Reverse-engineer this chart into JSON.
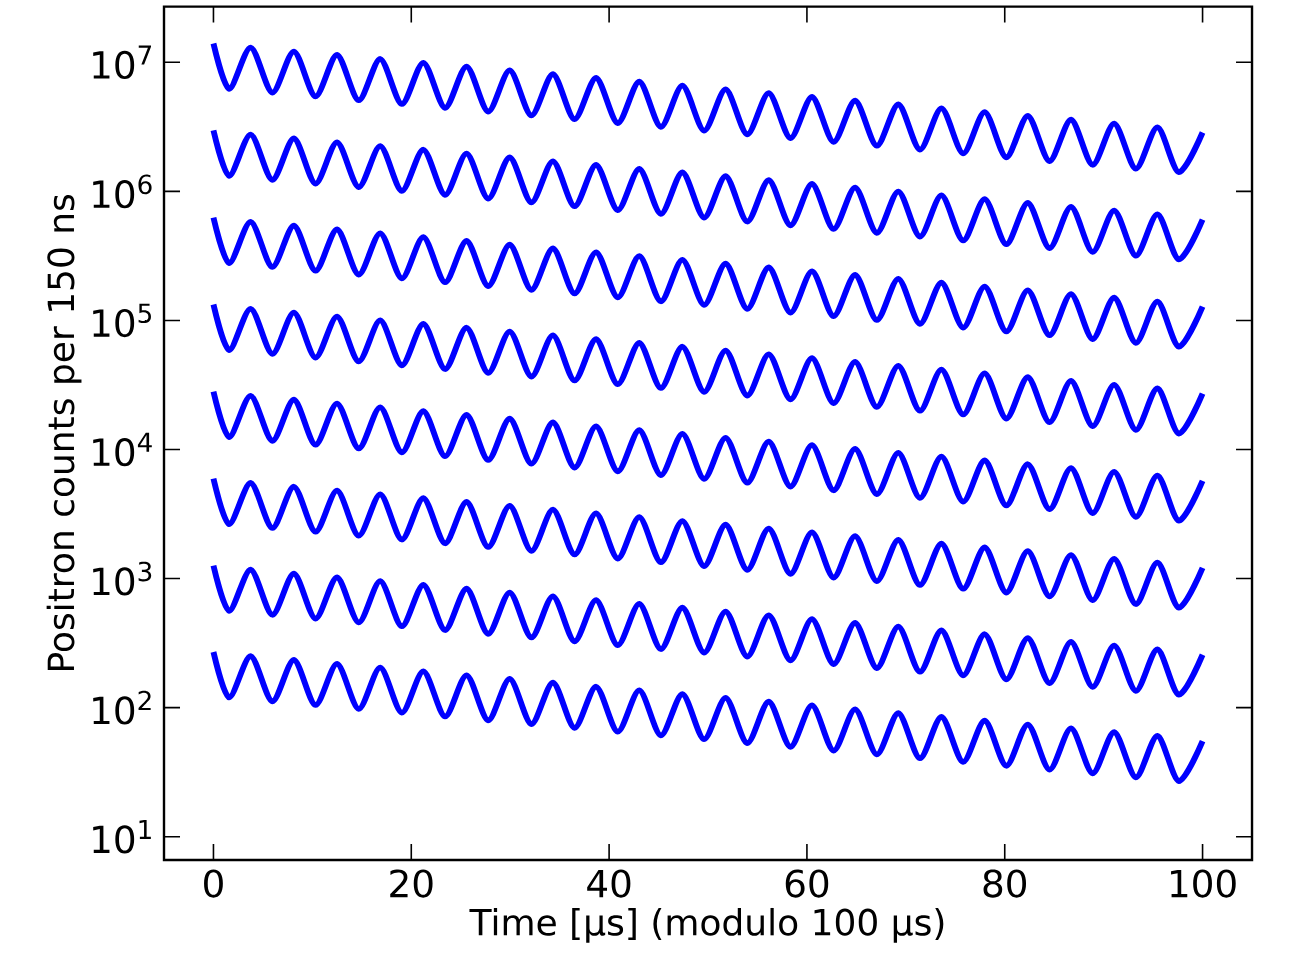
{
  "chart_data": {
    "type": "line",
    "xlabel": "Time [μs] (modulo 100 μs)",
    "ylabel": "Positron counts per 150 ns",
    "log": "y",
    "grid": false,
    "marker": "none",
    "line_style": "solid",
    "xlim": [
      -5,
      105
    ],
    "ylim": [
      6.6,
      27000000.0
    ],
    "xticks": [
      0,
      20,
      40,
      60,
      80,
      100
    ],
    "yticks": [
      {
        "value": 10,
        "label": "10$^{1}$"
      },
      {
        "value": 100,
        "label": "10$^{2}$"
      },
      {
        "value": 1000,
        "label": "10$^{3}$"
      },
      {
        "value": 10000,
        "label": "10$^{4}$"
      },
      {
        "value": 100000,
        "label": "10$^{5}$"
      },
      {
        "value": 1000000,
        "label": "10$^{6}$"
      },
      {
        "value": 10000000,
        "label": "10$^{7}$"
      }
    ],
    "x": [
      0,
      1.58,
      3.77,
      5.95,
      8.14,
      10.31,
      12.5,
      14.68,
      16.87,
      19.04,
      21.23,
      23.41,
      25.6,
      27.77,
      29.96,
      32.14,
      34.33,
      36.5,
      38.69,
      40.87,
      43.06,
      45.23,
      47.42,
      49.6,
      51.79,
      53.96,
      56.15,
      58.33,
      60.52,
      62.69,
      64.88,
      67.06,
      69.25,
      71.42,
      73.61,
      75.79,
      77.98,
      80.15,
      82.34,
      84.52,
      86.71,
      88.88,
      91.07,
      93.25,
      95.44,
      97.61,
      100
    ],
    "series": [
      {
        "color": "#0000ff",
        "values": [
          14000000.0,
          6240000.0,
          13000000.0,
          5830000.0,
          12100000.0,
          5450000.0,
          11400000.0,
          5090000.0,
          10600000.0,
          4760000.0,
          9910000.0,
          4450000.0,
          9270000.0,
          4160000.0,
          8660000.0,
          3880000.0,
          8090000.0,
          3630000.0,
          7560000.0,
          3390000.0,
          7070000.0,
          3170000.0,
          6600000.0,
          2960000.0,
          6170000.0,
          2770000.0,
          5770000.0,
          2590000.0,
          5390000.0,
          2420000.0,
          5040000.0,
          2260000.0,
          4710000.0,
          2110000.0,
          4400000.0,
          1970000.0,
          4110000.0,
          1840000.0,
          3840000.0,
          1720000.0,
          3590000.0,
          1610000.0,
          3350000.0,
          1500000.0,
          3130000.0,
          1410000.0,
          2860000.0
        ]
      },
      {
        "color": "#0000ff",
        "values": [
          2970000.0,
          1320000.0,
          2750000.0,
          1230000.0,
          2570000.0,
          1150000.0,
          2400000.0,
          1080000.0,
          2240000.0,
          1010000.0,
          2100000.0,
          941000.0,
          1960000.0,
          879000.0,
          1830000.0,
          822000.0,
          1710000.0,
          768000.0,
          1600000.0,
          717000.0,
          1490000.0,
          670000.0,
          1400000.0,
          627000.0,
          1310000.0,
          585000.0,
          1220000.0,
          547000.0,
          1140000.0,
          512000.0,
          1070000.0,
          478000.0,
          996000.0,
          447000.0,
          930000.0,
          417000.0,
          870000.0,
          390000.0,
          813000.0,
          364000.0,
          759000.0,
          340000.0,
          710000.0,
          318000.0,
          663000.0,
          297000.0,
          605000.0
        ]
      },
      {
        "color": "#0000ff",
        "values": [
          626000.0,
          278000.0,
          580000.0,
          260000.0,
          542000.0,
          243000.0,
          507000.0,
          227000.0,
          473000.0,
          212000.0,
          442000.0,
          198000.0,
          413000.0,
          185000.0,
          386000.0,
          173000.0,
          361000.0,
          162000.0,
          337000.0,
          151000.0,
          315000.0,
          141000.0,
          295000.0,
          132000.0,
          275000.0,
          123000.0,
          257000.0,
          115000.0,
          240000.0,
          108000.0,
          225000.0,
          101000.0,
          210000.0,
          94200.0,
          196000.0,
          88000.0,
          183000.0,
          82200.0,
          171000.0,
          76900.0,
          160000.0,
          71800.0,
          150000.0,
          67100.0,
          140000.0,
          62700.0,
          128000.0
        ]
      },
      {
        "color": "#0000ff",
        "values": [
          133000.0,
          59000.0,
          123000.0,
          55200.0,
          115000.0,
          51600.0,
          107000.0,
          48200.0,
          100000.0,
          45000.0,
          93800.0,
          42100.0,
          87700.0,
          39300.0,
          81900.0,
          36800.0,
          76600.0,
          34300.0,
          71500.0,
          32100.0,
          66900.0,
          30000.0,
          62500.0,
          28000.0,
          58400.0,
          26200.0,
          54600.0,
          24500.0,
          51000.0,
          22900.0,
          47700.0,
          21400.0,
          44500.0,
          20000.0,
          41600.0,
          18700.0,
          38900.0,
          17400.0,
          36300.0,
          16300.0,
          34000.0,
          15200.0,
          31700.0,
          14200.0,
          29700.0,
          13300.0,
          27100.0
        ]
      },
      {
        "color": "#0000ff",
        "values": [
          28100.0,
          12500.0,
          26000.0,
          11700.0,
          24300.0,
          10900.0,
          22700.0,
          10200.0,
          21200.0,
          9520.0,
          19800.0,
          8890.0,
          18500.0,
          8310.0,
          17300.0,
          7770.0,
          16200.0,
          7260.0,
          15100.0,
          6780.0,
          14100.0,
          6340.0,
          13200.0,
          5930.0,
          12300.0,
          5540.0,
          11500.0,
          5170.0,
          10800.0,
          4840.0,
          10100.0,
          4520.0,
          9410.0,
          4220.0,
          8800.0,
          3950.0,
          8220.0,
          3690.0,
          7680.0,
          3450.0,
          7180.0,
          3220.0,
          6710.0,
          3010.0,
          6270.0,
          2810.0,
          5720.0
        ]
      },
      {
        "color": "#0000ff",
        "values": [
          5940.0,
          2640.0,
          5500.0,
          2470.0,
          5140.0,
          2310.0,
          4800.0,
          2150.0,
          4490.0,
          2010.0,
          4190.0,
          1880.0,
          3920.0,
          1760.0,
          3660.0,
          1640.0,
          3420.0,
          1540.0,
          3200.0,
          1430.0,
          2990.0,
          1340.0,
          2790.0,
          1250.0,
          2610.0,
          1170.0,
          2440.0,
          1090.0,
          2280.0,
          1020.0,
          2130.0,
          956,
          1990.0,
          893,
          1860.0,
          835,
          1740.0,
          780,
          1630.0,
          729,
          1520.0,
          681,
          1420.0,
          636,
          1330.0,
          595,
          1210.0
        ]
      },
      {
        "color": "#0000ff",
        "values": [
          1260.0,
          562,
          1170.0,
          525,
          1090.0,
          490,
          1020.0,
          458,
          955,
          428,
          892,
          400,
          834,
          374,
          779,
          350,
          728,
          327,
          680,
          305,
          636,
          285,
          594,
          267,
          555,
          249,
          519,
          233,
          485,
          218,
          453,
          203,
          424,
          190,
          396,
          178,
          370,
          166,
          346,
          155,
          323,
          145,
          302,
          135,
          282,
          126,
          257
        ]
      },
      {
        "color": "#0000ff",
        "values": [
          270,
          120,
          250,
          112,
          234,
          105,
          218,
          97.9,
          204,
          91.5,
          191,
          85.5,
          178,
          79.9,
          167,
          74.7,
          156,
          69.8,
          145,
          65.2,
          136,
          61.0,
          127,
          57.0,
          119,
          53.2,
          111,
          49.8,
          104,
          46.5,
          96.9,
          43.5,
          90.5,
          40.6,
          84.6,
          38.0,
          79.1,
          35.5,
          73.9,
          33.1,
          69.0,
          31.0,
          64.5,
          28.9,
          60.3,
          27.0,
          55.0
        ]
      }
    ]
  }
}
